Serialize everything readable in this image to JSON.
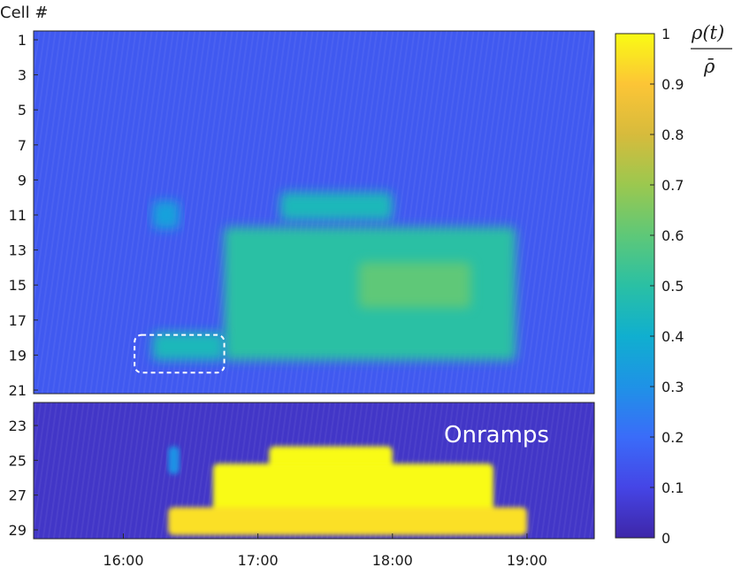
{
  "chart_data": {
    "type": "heatmap",
    "ylabel": "Cell #",
    "colorbar_label": {
      "numerator": "ρ(t)",
      "denominator": "ρ̄"
    },
    "colorbar_ticks": [
      "0",
      "0.1",
      "0.2",
      "0.3",
      "0.4",
      "0.5",
      "0.6",
      "0.7",
      "0.8",
      "0.9",
      "1"
    ],
    "colorbar_range": [
      0,
      1
    ],
    "colormap": "parula",
    "x_ticks": [
      "16:00",
      "17:00",
      "18:00",
      "19:00"
    ],
    "x_range_hours": [
      15.333,
      19.5
    ],
    "panels": [
      {
        "name": "mainline",
        "annotation": "",
        "y_ticks": [
          "1",
          "3",
          "5",
          "7",
          "9",
          "11",
          "13",
          "15",
          "17",
          "19",
          "21"
        ],
        "y_range": [
          1,
          21
        ],
        "background_value": 0.15,
        "highlight_box": {
          "x": [
            "16:05",
            "16:45"
          ],
          "cells": [
            18,
            20
          ]
        },
        "regions": [
          {
            "cells": [
              10,
              11
            ],
            "x": [
              "17:10",
              "18:00"
            ],
            "value": 0.45
          },
          {
            "cells": [
              10.5,
              11.5
            ],
            "x": [
              "16:13",
              "16:25"
            ],
            "value": 0.35
          },
          {
            "cells": [
              12,
              19
            ],
            "x": [
              "16:45",
              "18:55"
            ],
            "value": 0.5
          },
          {
            "cells": [
              14,
              16
            ],
            "x": [
              "17:45",
              "18:35"
            ],
            "value": 0.6
          },
          {
            "cells": [
              18,
              19
            ],
            "x": [
              "16:13",
              "16:45"
            ],
            "value": 0.45
          }
        ]
      },
      {
        "name": "onramps",
        "annotation": "Onramps",
        "y_ticks": [
          "23",
          "25",
          "27",
          "29"
        ],
        "y_range": [
          22,
          29.5
        ],
        "background_value": 0.05,
        "regions": [
          {
            "cells": [
              24.5,
              25.5
            ],
            "x": [
              "17:05",
              "18:00"
            ],
            "value": 1.0
          },
          {
            "cells": [
              25.5,
              28.5
            ],
            "x": [
              "16:40",
              "18:45"
            ],
            "value": 1.0
          },
          {
            "cells": [
              28,
              29
            ],
            "x": [
              "16:20",
              "19:00"
            ],
            "value": 0.95
          },
          {
            "cells": [
              24.5,
              25.5
            ],
            "x": [
              "16:20",
              "16:25"
            ],
            "value": 0.3
          }
        ]
      }
    ]
  }
}
